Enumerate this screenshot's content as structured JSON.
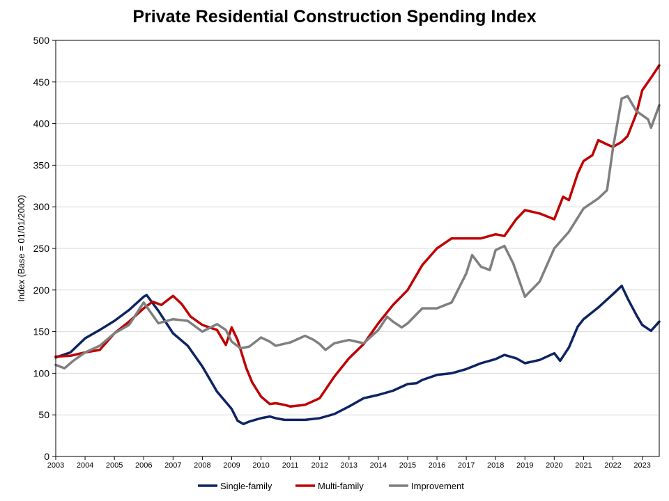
{
  "chart_data": {
    "type": "line",
    "title": "Private Residential Construction Spending Index",
    "xlabel": "",
    "ylabel": "Index  (Base = 01/01/2000)",
    "ylim": [
      0,
      500
    ],
    "yticks": [
      0,
      50,
      100,
      150,
      200,
      250,
      300,
      350,
      400,
      450,
      500
    ],
    "xlim": [
      2003.0,
      2023.58
    ],
    "xticks": [
      "2003",
      "2004",
      "2005",
      "2006",
      "2007",
      "2008",
      "2009",
      "2010",
      "2011",
      "2012",
      "2013",
      "2014",
      "2015",
      "2016",
      "2017",
      "2018",
      "2019",
      "2020",
      "2021",
      "2022",
      "2023"
    ],
    "grid": "horizontal",
    "legend_position": "bottom",
    "series": [
      {
        "name": "Single-family",
        "color": "#0d2463",
        "x": [
          2003.0,
          2003.5,
          2004.0,
          2004.5,
          2005.0,
          2005.5,
          2006.0,
          2006.1,
          2006.5,
          2007.0,
          2007.5,
          2008.0,
          2008.5,
          2009.0,
          2009.2,
          2009.4,
          2009.6,
          2010.0,
          2010.3,
          2010.5,
          2010.8,
          2011.0,
          2011.5,
          2012.0,
          2012.5,
          2013.0,
          2013.5,
          2014.0,
          2014.5,
          2015.0,
          2015.3,
          2015.5,
          2016.0,
          2016.5,
          2017.0,
          2017.5,
          2018.0,
          2018.3,
          2018.7,
          2019.0,
          2019.5,
          2020.0,
          2020.2,
          2020.5,
          2020.8,
          2021.0,
          2021.5,
          2022.0,
          2022.3,
          2022.5,
          2022.8,
          2023.0,
          2023.3,
          2023.58
        ],
        "values": [
          119,
          125,
          142,
          152,
          163,
          176,
          192,
          194,
          175,
          148,
          133,
          108,
          78,
          57,
          43,
          39,
          42,
          46,
          48,
          46,
          44,
          44,
          44,
          46,
          51,
          60,
          70,
          74,
          79,
          87,
          88,
          92,
          98,
          100,
          105,
          112,
          117,
          122,
          118,
          112,
          116,
          124,
          115,
          131,
          156,
          165,
          179,
          195,
          205,
          190,
          170,
          158,
          151,
          162
        ]
      },
      {
        "name": "Multi-family",
        "color": "#c00000",
        "x": [
          2003.0,
          2003.5,
          2004.0,
          2004.5,
          2005.0,
          2005.5,
          2006.0,
          2006.3,
          2006.6,
          2007.0,
          2007.3,
          2007.6,
          2008.0,
          2008.5,
          2008.8,
          2009.0,
          2009.2,
          2009.5,
          2009.7,
          2010.0,
          2010.3,
          2010.5,
          2010.8,
          2011.0,
          2011.5,
          2012.0,
          2012.5,
          2013.0,
          2013.5,
          2014.0,
          2014.5,
          2015.0,
          2015.5,
          2016.0,
          2016.5,
          2017.0,
          2017.5,
          2018.0,
          2018.3,
          2018.7,
          2019.0,
          2019.5,
          2020.0,
          2020.3,
          2020.5,
          2020.8,
          2021.0,
          2021.3,
          2021.5,
          2021.8,
          2022.0,
          2022.3,
          2022.5,
          2022.8,
          2023.0,
          2023.3,
          2023.58
        ],
        "values": [
          120,
          121,
          125,
          128,
          148,
          162,
          178,
          186,
          182,
          193,
          183,
          168,
          158,
          152,
          134,
          155,
          140,
          106,
          89,
          72,
          63,
          64,
          62,
          60,
          62,
          70,
          96,
          118,
          135,
          160,
          182,
          200,
          230,
          250,
          262,
          262,
          262,
          267,
          265,
          285,
          296,
          292,
          285,
          312,
          308,
          340,
          355,
          362,
          380,
          375,
          372,
          378,
          385,
          412,
          440,
          455,
          470
        ]
      },
      {
        "name": "Improvement",
        "color": "#7f7f7f",
        "x": [
          2003.0,
          2003.3,
          2003.6,
          2004.0,
          2004.5,
          2005.0,
          2005.5,
          2006.0,
          2006.5,
          2007.0,
          2007.5,
          2008.0,
          2008.5,
          2008.8,
          2009.0,
          2009.3,
          2009.6,
          2010.0,
          2010.3,
          2010.5,
          2011.0,
          2011.5,
          2011.8,
          2012.0,
          2012.2,
          2012.5,
          2013.0,
          2013.5,
          2014.0,
          2014.3,
          2014.5,
          2014.8,
          2015.0,
          2015.5,
          2016.0,
          2016.5,
          2017.0,
          2017.2,
          2017.5,
          2017.8,
          2018.0,
          2018.3,
          2018.6,
          2019.0,
          2019.5,
          2020.0,
          2020.5,
          2021.0,
          2021.5,
          2021.8,
          2022.0,
          2022.3,
          2022.5,
          2022.8,
          2023.0,
          2023.2,
          2023.3,
          2023.58
        ],
        "values": [
          110,
          106,
          115,
          125,
          133,
          148,
          158,
          185,
          160,
          165,
          163,
          150,
          159,
          152,
          138,
          130,
          132,
          143,
          138,
          133,
          137,
          145,
          140,
          135,
          128,
          136,
          140,
          136,
          152,
          168,
          162,
          155,
          160,
          178,
          178,
          185,
          220,
          242,
          228,
          224,
          248,
          253,
          232,
          192,
          210,
          250,
          270,
          298,
          310,
          320,
          370,
          430,
          433,
          415,
          410,
          405,
          395,
          422
        ]
      }
    ]
  }
}
